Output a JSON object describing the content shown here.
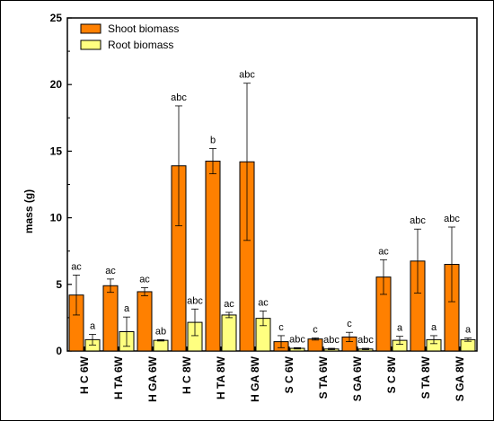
{
  "chart_data": {
    "type": "bar",
    "ylabel": "mass (g)",
    "xlabel": "",
    "ylim": [
      0,
      25
    ],
    "yticks": [
      "0",
      "5",
      "10",
      "15",
      "20",
      "25"
    ],
    "legend_position": "top-left",
    "categories": [
      "H C 6W",
      "H TA 6W",
      "H GA 6W",
      "H C 8W",
      "H TA 8W",
      "H GA 8W",
      "S C 6W",
      "S TA 6W",
      "S GA 6W",
      "S C 8W",
      "S TA 8W",
      "S GA 8W"
    ],
    "series": [
      {
        "name": "Shoot biomass",
        "color": "#ff8000",
        "values": [
          4.2,
          4.9,
          4.45,
          13.9,
          14.25,
          14.2,
          0.7,
          0.9,
          1.05,
          5.55,
          6.75,
          6.5
        ],
        "errors": [
          1.5,
          0.5,
          0.3,
          4.5,
          0.95,
          5.9,
          0.45,
          0.08,
          0.35,
          1.3,
          2.4,
          2.8
        ],
        "labels": [
          "ac",
          "ac",
          "ac",
          "abc",
          "b",
          "abc",
          "c",
          "c",
          "c",
          "ac",
          "abc",
          "abc"
        ]
      },
      {
        "name": "Root biomass",
        "color": "#ffff80",
        "values": [
          0.85,
          1.45,
          0.8,
          2.15,
          2.7,
          2.45,
          0.2,
          0.15,
          0.15,
          0.8,
          0.85,
          0.85
        ],
        "errors": [
          0.4,
          1.1,
          0.05,
          1.0,
          0.2,
          0.55,
          0.05,
          0.05,
          0.05,
          0.3,
          0.3,
          0.12
        ],
        "labels": [
          "a",
          "a",
          "ab",
          "abc",
          "ac",
          "ac",
          "abc",
          "abc",
          "abc",
          "a",
          "a",
          "a"
        ]
      }
    ]
  }
}
